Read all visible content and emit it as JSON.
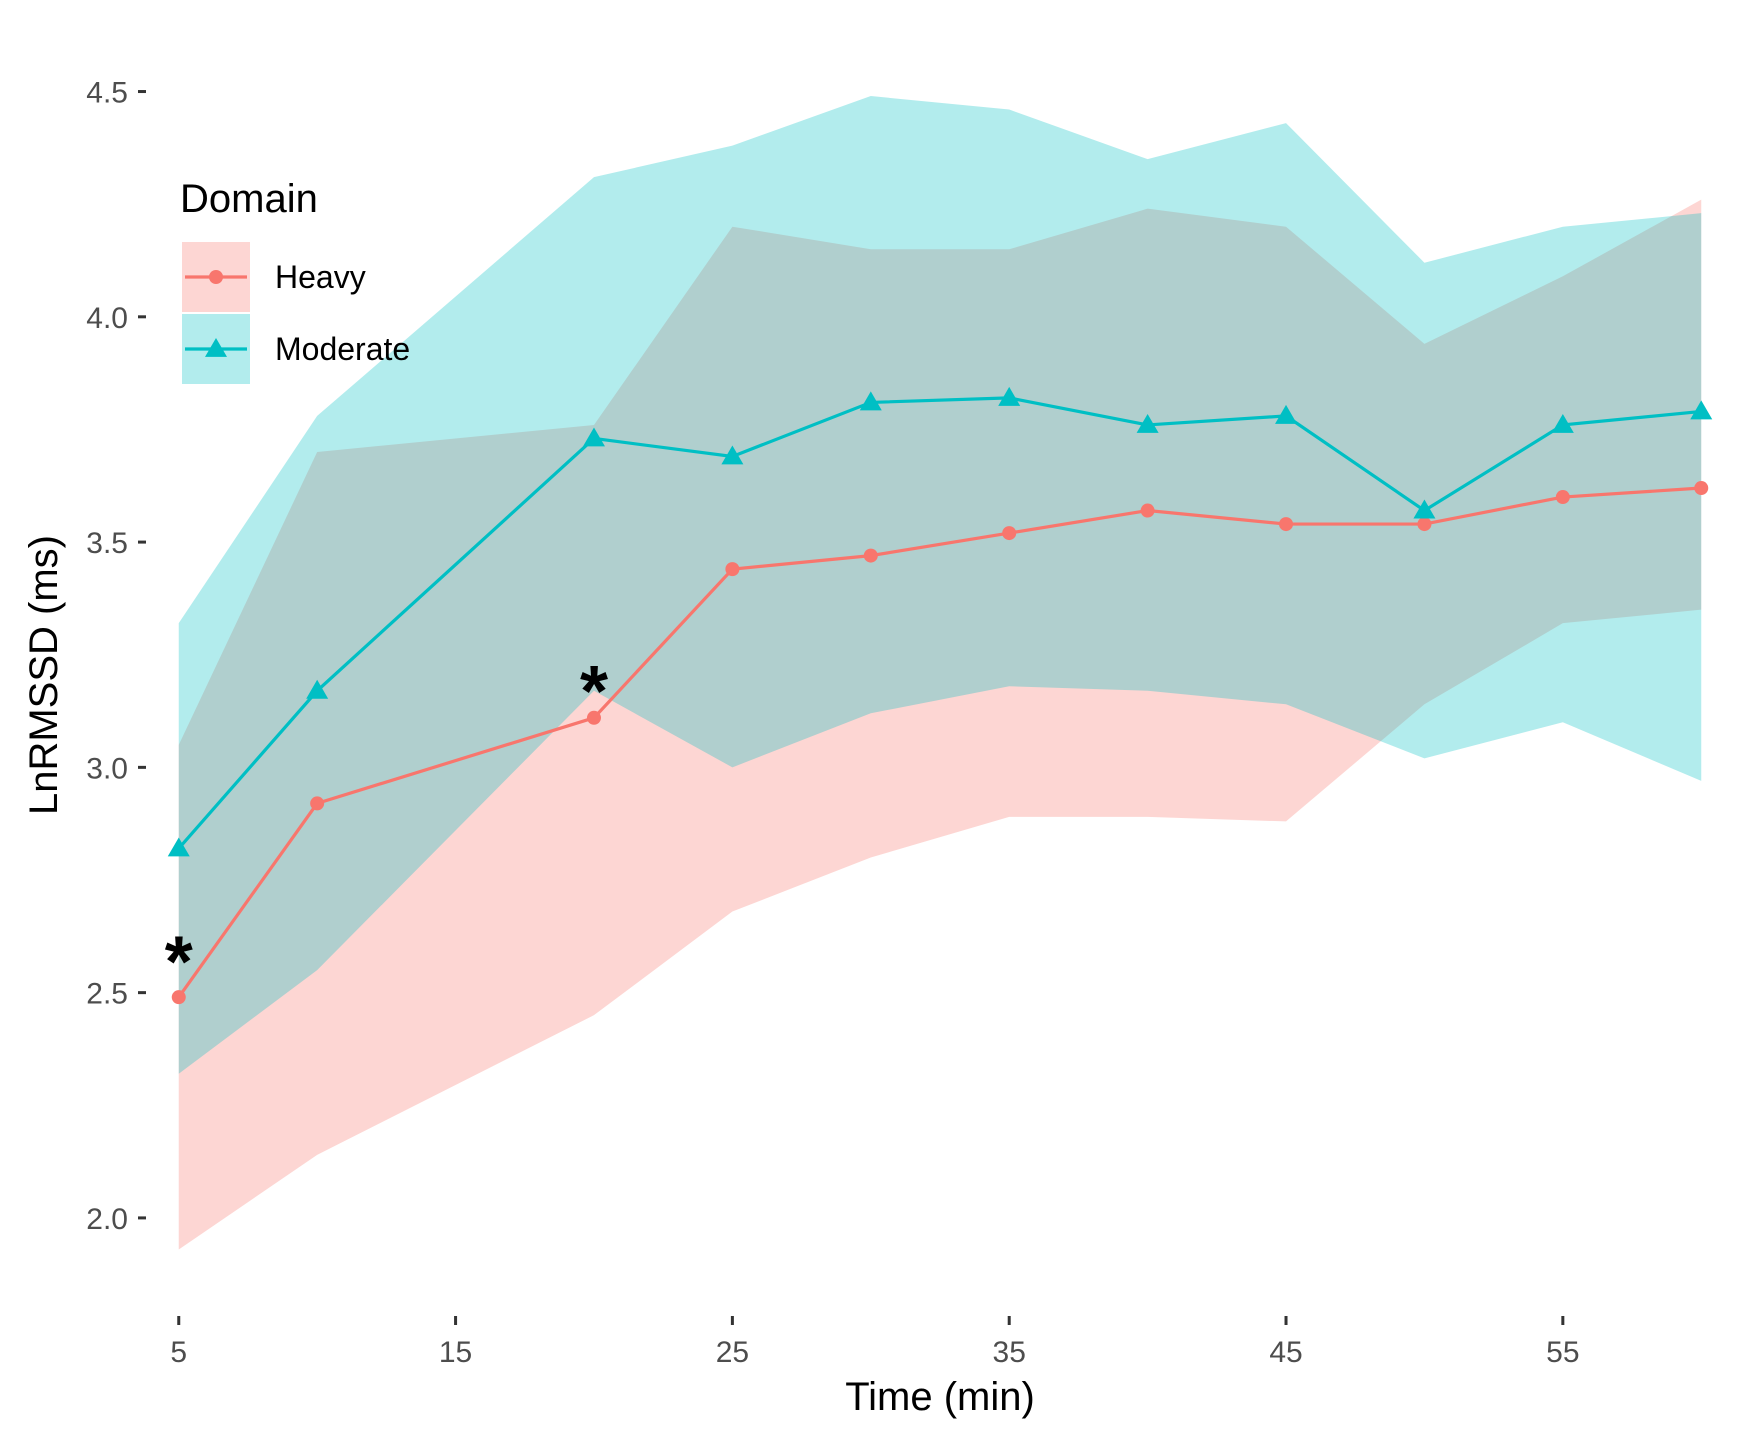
{
  "chart_data": {
    "type": "line",
    "xlabel": "Time (min)",
    "ylabel": "LnRMSSD (ms)",
    "x": [
      5,
      10,
      20,
      25,
      30,
      35,
      40,
      45,
      50,
      55,
      60
    ],
    "xticks": [
      "5",
      "15",
      "25",
      "35",
      "45",
      "55"
    ],
    "xtick_values": [
      5,
      15,
      25,
      35,
      45,
      55
    ],
    "yticks": [
      "2.0",
      "2.5",
      "3.0",
      "3.5",
      "4.0",
      "4.5"
    ],
    "ytick_values": [
      2.0,
      2.5,
      3.0,
      3.5,
      4.0,
      4.5
    ],
    "xlim": [
      3.6,
      61.4
    ],
    "ylim": [
      1.84,
      4.57
    ],
    "grid": false,
    "legend": {
      "title": "Domain",
      "position": "top-left"
    },
    "series": [
      {
        "name": "Heavy",
        "marker": "circle",
        "color": "#F8766D",
        "band_color": "#F8766D",
        "values": [
          2.49,
          2.92,
          3.11,
          3.44,
          3.47,
          3.52,
          3.57,
          3.54,
          3.54,
          3.6,
          3.62
        ],
        "lower": [
          1.93,
          2.14,
          2.45,
          2.68,
          2.8,
          2.89,
          2.89,
          2.88,
          3.14,
          3.32,
          3.35
        ],
        "upper": [
          3.05,
          3.7,
          3.76,
          4.2,
          4.15,
          4.15,
          4.24,
          4.2,
          3.94,
          4.09,
          4.26
        ]
      },
      {
        "name": "Moderate",
        "marker": "triangle",
        "color": "#00BFC4",
        "band_color": "#00BFC4",
        "values": [
          2.82,
          3.17,
          3.73,
          3.69,
          3.81,
          3.82,
          3.76,
          3.78,
          3.57,
          3.76,
          3.79
        ],
        "lower": [
          2.32,
          2.55,
          3.17,
          3.0,
          3.12,
          3.18,
          3.17,
          3.14,
          3.02,
          3.1,
          2.97
        ],
        "upper": [
          3.32,
          3.78,
          4.31,
          4.38,
          4.49,
          4.46,
          4.35,
          4.43,
          4.12,
          4.2,
          4.23
        ]
      }
    ],
    "annotations": [
      {
        "text": "*",
        "x": 5,
        "y": 2.62
      },
      {
        "text": "*",
        "x": 20,
        "y": 3.22
      }
    ]
  }
}
